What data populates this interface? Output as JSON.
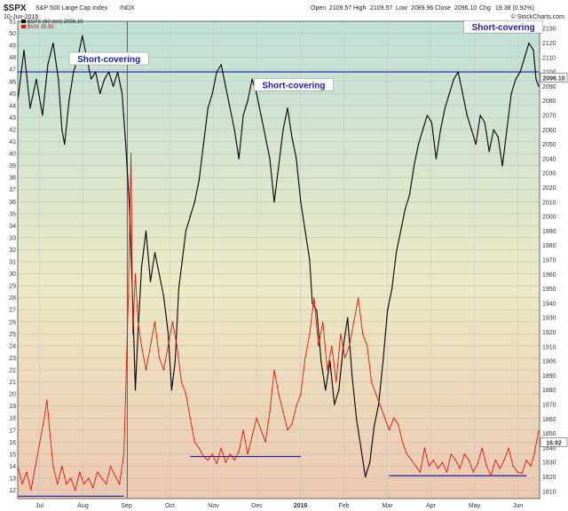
{
  "header": {
    "symbol": "$SPX",
    "name": "S&P 500 Large Cap Index",
    "exchange": "INDX",
    "date": "10-Jun-2016",
    "open_label": "Open",
    "open": "2109.57",
    "high_label": "High",
    "high": "2109.57",
    "low_label": "Low",
    "low": "2089.96",
    "close_label": "Close",
    "close": "2096.10",
    "chg_label": "Chg",
    "chg": "19.38 (0.92%)",
    "watermark": "© StockCharts.com"
  },
  "legend": {
    "spx_entry": "$SPX (60 min) 2096.10",
    "vix_entry": "$VIX 16.92"
  },
  "chart_data": {
    "type": "line",
    "title": "",
    "xlabel": "",
    "ylabel": "",
    "x_tick_labels": [
      "Jul",
      "Aug",
      "Sep",
      "Oct",
      "Nov",
      "Dec",
      "2016",
      "Feb",
      "Mar",
      "Apr",
      "May",
      "Jun"
    ],
    "y_left": {
      "name": "VIX",
      "range": [
        11.3,
        51
      ],
      "ticks": [
        12,
        13,
        14,
        15,
        16,
        17,
        18,
        19,
        20,
        21,
        22,
        23,
        24,
        25,
        26,
        27,
        28,
        29,
        30,
        31,
        32,
        33,
        34,
        35,
        36,
        37,
        38,
        39,
        40,
        41,
        42,
        43,
        44,
        45,
        46,
        47,
        48,
        49,
        50,
        51
      ]
    },
    "y_right": {
      "name": "SPX",
      "range": [
        1805,
        2135
      ],
      "ticks": [
        1810,
        1820,
        1830,
        1840,
        1850,
        1860,
        1870,
        1880,
        1890,
        1900,
        1910,
        1920,
        1930,
        1940,
        1950,
        1960,
        1970,
        1980,
        1990,
        2000,
        2010,
        2020,
        2030,
        2040,
        2050,
        2060,
        2070,
        2080,
        2090,
        2100,
        2110,
        2120,
        2130
      ]
    },
    "series": [
      {
        "name": "$SPX (60 min)",
        "axis": "right",
        "color": "#000000",
        "points": [
          [
            0.0,
            2080
          ],
          [
            0.7,
            2115
          ],
          [
            1.4,
            2075
          ],
          [
            2.1,
            2095
          ],
          [
            2.8,
            2070
          ],
          [
            3.4,
            2105
          ],
          [
            4.0,
            2120
          ],
          [
            4.6,
            2095
          ],
          [
            5.0,
            2060
          ],
          [
            5.3,
            2050
          ],
          [
            5.8,
            2080
          ],
          [
            6.3,
            2100
          ],
          [
            6.8,
            2110
          ],
          [
            7.3,
            2125
          ],
          [
            7.8,
            2110
          ],
          [
            8.3,
            2095
          ],
          [
            8.8,
            2100
          ],
          [
            9.3,
            2085
          ],
          [
            9.8,
            2095
          ],
          [
            10.3,
            2100
          ],
          [
            10.8,
            2090
          ],
          [
            11.3,
            2100
          ],
          [
            11.8,
            2085
          ],
          [
            12.2,
            2050
          ],
          [
            12.6,
            2010
          ],
          [
            13.0,
            1940
          ],
          [
            13.3,
            1880
          ],
          [
            13.6,
            1920
          ],
          [
            14.0,
            1965
          ],
          [
            14.5,
            1990
          ],
          [
            15.0,
            1955
          ],
          [
            15.5,
            1975
          ],
          [
            16.0,
            1960
          ],
          [
            16.5,
            1945
          ],
          [
            17.0,
            1920
          ],
          [
            17.4,
            1880
          ],
          [
            17.8,
            1900
          ],
          [
            18.2,
            1950
          ],
          [
            18.6,
            1970
          ],
          [
            19.0,
            1990
          ],
          [
            19.5,
            2000
          ],
          [
            20.0,
            2010
          ],
          [
            20.5,
            2025
          ],
          [
            21.0,
            2050
          ],
          [
            21.5,
            2075
          ],
          [
            22.0,
            2085
          ],
          [
            22.5,
            2100
          ],
          [
            23.0,
            2105
          ],
          [
            23.5,
            2090
          ],
          [
            24.0,
            2075
          ],
          [
            24.5,
            2060
          ],
          [
            25.0,
            2040
          ],
          [
            25.5,
            2070
          ],
          [
            26.0,
            2080
          ],
          [
            26.5,
            2095
          ],
          [
            27.0,
            2085
          ],
          [
            27.5,
            2070
          ],
          [
            28.0,
            2055
          ],
          [
            28.5,
            2040
          ],
          [
            29.0,
            2010
          ],
          [
            29.5,
            2035
          ],
          [
            30.0,
            2060
          ],
          [
            30.5,
            2075
          ],
          [
            31.0,
            2055
          ],
          [
            31.5,
            2040
          ],
          [
            32.0,
            2010
          ],
          [
            32.5,
            1990
          ],
          [
            33.0,
            1970
          ],
          [
            33.3,
            1940
          ],
          [
            33.8,
            1935
          ],
          [
            34.3,
            1900
          ],
          [
            34.8,
            1880
          ],
          [
            35.3,
            1900
          ],
          [
            35.8,
            1870
          ],
          [
            36.3,
            1880
          ],
          [
            36.8,
            1910
          ],
          [
            37.3,
            1930
          ],
          [
            37.8,
            1890
          ],
          [
            38.3,
            1860
          ],
          [
            38.8,
            1840
          ],
          [
            39.3,
            1820
          ],
          [
            39.8,
            1830
          ],
          [
            40.3,
            1855
          ],
          [
            40.8,
            1870
          ],
          [
            41.3,
            1900
          ],
          [
            41.8,
            1935
          ],
          [
            42.3,
            1950
          ],
          [
            42.8,
            1975
          ],
          [
            43.3,
            1990
          ],
          [
            43.8,
            2005
          ],
          [
            44.3,
            2015
          ],
          [
            44.8,
            2035
          ],
          [
            45.3,
            2050
          ],
          [
            45.8,
            2060
          ],
          [
            46.3,
            2070
          ],
          [
            46.8,
            2065
          ],
          [
            47.3,
            2040
          ],
          [
            47.8,
            2060
          ],
          [
            48.3,
            2075
          ],
          [
            48.8,
            2085
          ],
          [
            49.3,
            2095
          ],
          [
            49.8,
            2100
          ],
          [
            50.3,
            2085
          ],
          [
            50.8,
            2070
          ],
          [
            51.3,
            2060
          ],
          [
            51.8,
            2050
          ],
          [
            52.3,
            2070
          ],
          [
            52.8,
            2065
          ],
          [
            53.3,
            2045
          ],
          [
            53.8,
            2060
          ],
          [
            54.3,
            2055
          ],
          [
            54.8,
            2035
          ],
          [
            55.3,
            2060
          ],
          [
            55.8,
            2085
          ],
          [
            56.3,
            2095
          ],
          [
            56.8,
            2100
          ],
          [
            57.3,
            2110
          ],
          [
            57.8,
            2120
          ],
          [
            58.3,
            2115
          ],
          [
            58.6,
            2095
          ],
          [
            58.9,
            2090
          ]
        ]
      },
      {
        "name": "$VIX",
        "axis": "left",
        "color": "#ee1100",
        "points": [
          [
            0.0,
            14
          ],
          [
            0.5,
            12.5
          ],
          [
            1.0,
            13.5
          ],
          [
            1.5,
            12
          ],
          [
            2.0,
            14
          ],
          [
            2.5,
            16
          ],
          [
            3.0,
            18
          ],
          [
            3.3,
            19.5
          ],
          [
            3.6,
            17
          ],
          [
            4.0,
            14
          ],
          [
            4.5,
            12.5
          ],
          [
            5.0,
            14
          ],
          [
            5.5,
            12.5
          ],
          [
            6.0,
            13
          ],
          [
            6.5,
            12
          ],
          [
            7.0,
            13.5
          ],
          [
            7.5,
            12.5
          ],
          [
            8.0,
            13
          ],
          [
            8.5,
            12.2
          ],
          [
            9.0,
            13.5
          ],
          [
            9.5,
            13
          ],
          [
            10.0,
            12.5
          ],
          [
            10.5,
            14
          ],
          [
            11.0,
            13.2
          ],
          [
            11.5,
            12.5
          ],
          [
            12.0,
            15
          ],
          [
            12.5,
            28
          ],
          [
            12.8,
            40
          ],
          [
            13.0,
            25
          ],
          [
            13.3,
            30
          ],
          [
            13.6,
            26
          ],
          [
            14.0,
            24
          ],
          [
            14.5,
            22
          ],
          [
            15.0,
            24
          ],
          [
            15.5,
            26
          ],
          [
            16.0,
            23
          ],
          [
            16.5,
            22
          ],
          [
            17.0,
            24
          ],
          [
            17.5,
            26
          ],
          [
            18.0,
            24
          ],
          [
            18.5,
            21
          ],
          [
            19.0,
            20
          ],
          [
            19.5,
            18
          ],
          [
            20.0,
            16
          ],
          [
            20.5,
            15.5
          ],
          [
            21.0,
            14.8
          ],
          [
            21.5,
            14.5
          ],
          [
            22.0,
            15
          ],
          [
            22.5,
            14.2
          ],
          [
            23.0,
            15.5
          ],
          [
            23.5,
            14.3
          ],
          [
            24.0,
            15
          ],
          [
            24.5,
            14.5
          ],
          [
            25.0,
            15.2
          ],
          [
            25.5,
            17
          ],
          [
            26.0,
            15
          ],
          [
            26.5,
            16.5
          ],
          [
            27.0,
            18
          ],
          [
            27.5,
            17
          ],
          [
            28.0,
            16
          ],
          [
            28.5,
            18.5
          ],
          [
            29.0,
            22
          ],
          [
            29.5,
            20
          ],
          [
            30.0,
            18.5
          ],
          [
            30.5,
            17
          ],
          [
            31.0,
            17.5
          ],
          [
            31.5,
            19
          ],
          [
            32.0,
            20
          ],
          [
            32.5,
            23
          ],
          [
            33.0,
            25
          ],
          [
            33.5,
            28
          ],
          [
            34.0,
            24
          ],
          [
            34.5,
            26
          ],
          [
            35.0,
            22
          ],
          [
            35.5,
            24
          ],
          [
            36.0,
            21
          ],
          [
            36.5,
            25
          ],
          [
            37.0,
            23
          ],
          [
            37.5,
            24
          ],
          [
            38.0,
            26
          ],
          [
            38.5,
            28
          ],
          [
            39.0,
            25
          ],
          [
            39.5,
            24
          ],
          [
            40.0,
            21
          ],
          [
            40.5,
            20
          ],
          [
            41.0,
            19
          ],
          [
            41.5,
            18
          ],
          [
            42.0,
            17
          ],
          [
            42.5,
            18
          ],
          [
            43.0,
            17.5
          ],
          [
            43.5,
            16
          ],
          [
            44.0,
            15
          ],
          [
            44.5,
            14.5
          ],
          [
            45.0,
            14
          ],
          [
            45.5,
            13.5
          ],
          [
            46.0,
            15.5
          ],
          [
            46.5,
            14
          ],
          [
            47.0,
            14.5
          ],
          [
            47.5,
            13.8
          ],
          [
            48.0,
            14.3
          ],
          [
            48.5,
            13.5
          ],
          [
            49.0,
            15
          ],
          [
            49.5,
            14.5
          ],
          [
            50.0,
            13.8
          ],
          [
            50.5,
            15
          ],
          [
            51.0,
            14.5
          ],
          [
            51.5,
            13.5
          ],
          [
            52.0,
            14.2
          ],
          [
            52.5,
            15.5
          ],
          [
            53.0,
            14
          ],
          [
            53.5,
            13.2
          ],
          [
            54.0,
            14.5
          ],
          [
            54.5,
            13.8
          ],
          [
            55.0,
            14.5
          ],
          [
            55.5,
            15.5
          ],
          [
            56.0,
            14
          ],
          [
            56.5,
            13.5
          ],
          [
            57.0,
            13.4
          ],
          [
            57.5,
            14.5
          ],
          [
            58.0,
            14
          ],
          [
            58.4,
            15
          ],
          [
            58.7,
            16.2
          ],
          [
            58.9,
            16.92
          ]
        ]
      }
    ],
    "horizontal_lines": [
      {
        "axis": "right",
        "value": 2100,
        "x_from": 0,
        "x_to": 59,
        "color": "#1a1ab0"
      },
      {
        "axis": "left",
        "value": 11.5,
        "x_from": 0,
        "x_to": 12,
        "color": "#1a1ab0"
      },
      {
        "axis": "left",
        "value": 14.8,
        "x_from": 19.5,
        "x_to": 32,
        "color": "#1a1ab0"
      },
      {
        "axis": "left",
        "value": 13.2,
        "x_from": 42,
        "x_to": 57.5,
        "color": "#1a1ab0"
      }
    ],
    "vertical_lines": [
      {
        "x": 12.4,
        "color": "#ee1100"
      }
    ],
    "annotations": [
      {
        "text": "Short-covering",
        "x": 10.3,
        "y_right": 2108
      },
      {
        "text": "Short-covering",
        "x": 31.2,
        "y_right": 2090
      },
      {
        "text": "Short-covering",
        "x": 54.9,
        "y_right": 2130
      }
    ],
    "last_value_tags": [
      {
        "axis": "right",
        "value": 2096.1,
        "label": "2096.10"
      },
      {
        "axis": "right",
        "value": 1844,
        "label": "16.92"
      }
    ],
    "x_range": [
      0,
      59
    ],
    "grid": true,
    "legend_position": "top-left",
    "background_gradient": [
      "#bfe0d8",
      "#ece9c4",
      "#ecc8b0"
    ]
  }
}
